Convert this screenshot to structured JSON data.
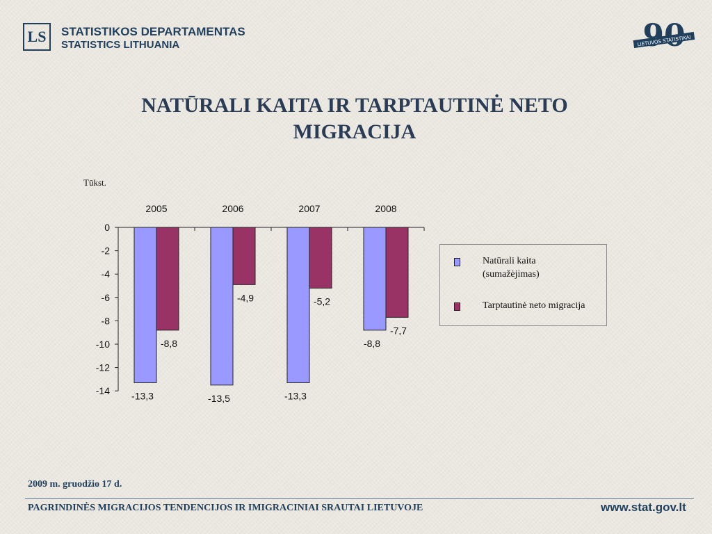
{
  "header": {
    "org_line1": "STATISTIKOS DEPARTAMENTAS",
    "org_line2": "STATISTICS LITHUANIA",
    "anniversary_number": "90",
    "anniversary_text": "LIETUVOS STATISTIKAI"
  },
  "slide": {
    "title_line1": "NATŪRALI KAITA IR TARPTAUTINĖ NETO",
    "title_line2": "MIGRACIJA",
    "unit": "Tūkst."
  },
  "legend": {
    "items": [
      {
        "label": "Natūrali kaita (sumažėjimas)",
        "color": "#9999ff"
      },
      {
        "label": "Tarptautinė neto migracija",
        "color": "#993366"
      }
    ]
  },
  "footer": {
    "date": "2009 m. gruodžio 17 d.",
    "title": "PAGRINDINĖS MIGRACIJOS TENDENCIJOS IR IMIGRACINIAI SRAUTAI LIETUVOJE",
    "url": "www.stat.gov.lt"
  },
  "chart_data": {
    "type": "bar",
    "categories": [
      "2005",
      "2006",
      "2007",
      "2008"
    ],
    "series": [
      {
        "name": "Natūrali kaita (sumažėjimas)",
        "values": [
          -13.3,
          -13.5,
          -13.3,
          -8.8
        ],
        "labels": [
          "-13,3",
          "-13,5",
          "-13,3",
          "-8,8"
        ],
        "color": "#9999ff"
      },
      {
        "name": "Tarptautinė neto migracija",
        "values": [
          -8.8,
          -4.9,
          -5.2,
          -7.7
        ],
        "labels": [
          "-8,8",
          "-4,9",
          "-5,2",
          "-7,7"
        ],
        "color": "#993366"
      }
    ],
    "ylim": [
      -14,
      0
    ],
    "yticks": [
      0,
      -2,
      -4,
      -6,
      -8,
      -10,
      -12,
      -14
    ],
    "ylabel": "Tūkst.",
    "xaxis_position": "top",
    "grid": false,
    "legend_position": "right"
  }
}
